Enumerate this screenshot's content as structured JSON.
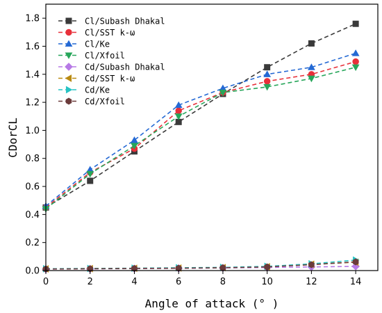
{
  "chart_data": {
    "type": "line",
    "title": "",
    "xlabel": "Angle of attack (° )",
    "ylabel": "CDorCL",
    "xlim": [
      0,
      15
    ],
    "ylim": [
      0,
      1.9
    ],
    "xticks": [
      0,
      2,
      4,
      6,
      8,
      10,
      12,
      14
    ],
    "yticks": [
      0.0,
      0.2,
      0.4,
      0.6,
      0.8,
      1.0,
      1.2,
      1.4,
      1.6,
      1.8
    ],
    "grid": false,
    "legend_position": "top-left",
    "x": [
      0,
      2,
      4,
      6,
      8,
      10,
      12,
      14
    ],
    "series": [
      {
        "name": "Cl/Subash Dhakal",
        "color": "#3a3a3a",
        "marker": "square",
        "values": [
          0.45,
          0.64,
          0.85,
          1.06,
          1.26,
          1.45,
          1.62,
          1.76
        ]
      },
      {
        "name": "Cl/SST k-ω",
        "color": "#e8303a",
        "marker": "circle",
        "values": [
          0.45,
          0.7,
          0.87,
          1.14,
          1.27,
          1.35,
          1.4,
          1.49
        ]
      },
      {
        "name": "Cl/Ke",
        "color": "#2469d4",
        "marker": "triangle-up",
        "values": [
          0.46,
          0.72,
          0.93,
          1.18,
          1.3,
          1.4,
          1.45,
          1.55
        ]
      },
      {
        "name": "Cl/Xfoil",
        "color": "#27a65a",
        "marker": "triangle-down",
        "values": [
          0.44,
          0.69,
          0.89,
          1.1,
          1.27,
          1.31,
          1.37,
          1.45
        ]
      },
      {
        "name": "Cd/Subash Dhakal",
        "color": "#b77ae6",
        "marker": "diamond",
        "values": [
          0.01,
          0.012,
          0.014,
          0.016,
          0.019,
          0.022,
          0.026,
          0.03
        ]
      },
      {
        "name": "Cd/SST k-ω",
        "color": "#b98a12",
        "marker": "triangle-left",
        "values": [
          0.012,
          0.014,
          0.016,
          0.018,
          0.021,
          0.027,
          0.045,
          0.06
        ]
      },
      {
        "name": "Cd/Ke",
        "color": "#27c3c3",
        "marker": "triangle-right",
        "values": [
          0.013,
          0.015,
          0.017,
          0.02,
          0.023,
          0.03,
          0.048,
          0.075
        ]
      },
      {
        "name": "Cd/Xfoil",
        "color": "#6b3b3b",
        "marker": "hexagon",
        "values": [
          0.011,
          0.013,
          0.015,
          0.017,
          0.02,
          0.026,
          0.042,
          0.062
        ]
      }
    ]
  }
}
